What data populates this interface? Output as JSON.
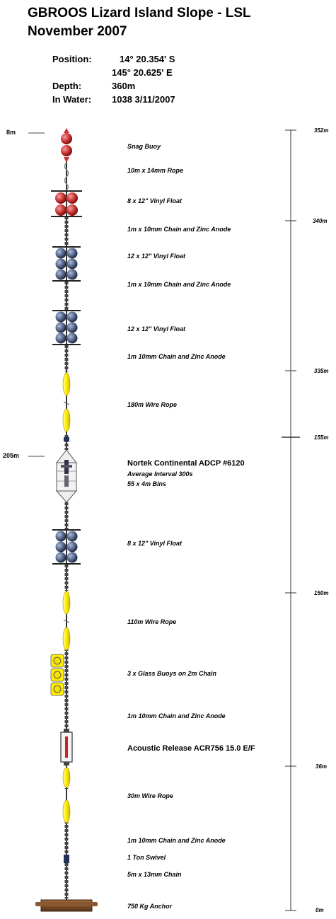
{
  "header": {
    "title_line1": "GBROOS Lizard Island Slope - LSL",
    "title_line2": "November 2007",
    "position_label": "Position:",
    "latitude": "14° 20.354' S",
    "longitude": "145° 20.625' E",
    "depth_label": "Depth:",
    "depth_value": "360m",
    "inwater_label": "In Water:",
    "inwater_value": "1038 3/11/2007"
  },
  "depth_markers": {
    "snag_depth": "8m",
    "adcp_depth": "205m"
  },
  "components": [
    {
      "label": "Snag Buoy"
    },
    {
      "label": "10m x 14mm Rope"
    },
    {
      "label": "8 x 12\" Vinyl Float"
    },
    {
      "label": "1m x 10mm Chain and Zinc Anode"
    },
    {
      "label": "12 x 12\" Vinyl Float"
    },
    {
      "label": "1m x 10mm Chain and Zinc Anode"
    },
    {
      "label": "12 x 12\" Vinyl Float"
    },
    {
      "label": "1m 10mm Chain and Zinc Anode"
    },
    {
      "label": "180m Wire Rope"
    },
    {
      "label": "Nortek Continental ADCP #6120"
    },
    {
      "label": "Average Interval 300s"
    },
    {
      "label": "55 x 4m Bins"
    },
    {
      "label": "8 x 12\" Vinyl Float"
    },
    {
      "label": "110m Wire Rope"
    },
    {
      "label": "3 x Glass Buoys on 2m Chain"
    },
    {
      "label": "1m 10mm Chain and Zinc Anode"
    },
    {
      "label": "Acoustic Release ACR756 15.0 E/F"
    },
    {
      "label": "30m Wire Rope"
    },
    {
      "label": "1m 10mm Chain and Zinc Anode"
    },
    {
      "label": "1 Ton Swivel"
    },
    {
      "label": "5m x 13mm Chain"
    },
    {
      "label": "750 Kg Anchor"
    }
  ],
  "scale": [
    "352m",
    "340m",
    "335m",
    "155m",
    "150m",
    "36m",
    "0m"
  ],
  "colors": {
    "red_float": "#cc3333",
    "blue_float": "#556688",
    "yellow": "#ffee00",
    "chain": "#555555",
    "anchor": "#7a4a25"
  }
}
